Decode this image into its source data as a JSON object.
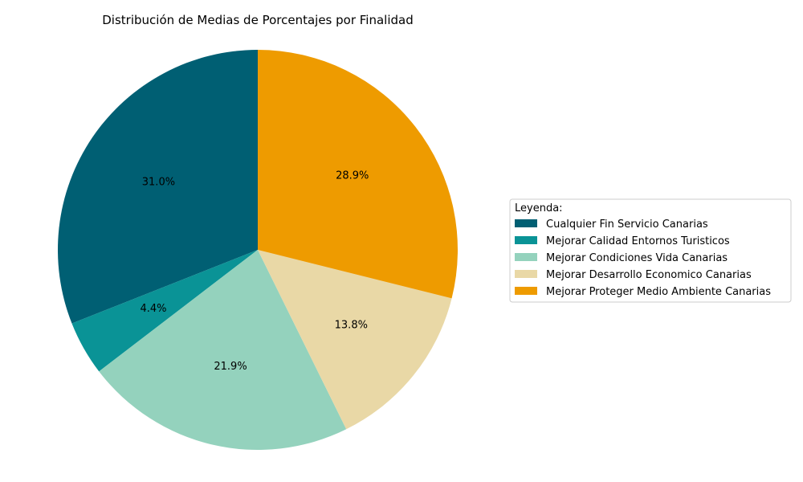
{
  "chart_data": {
    "type": "pie",
    "title": "Distribución de Medias de Porcentajes por Finalidad",
    "categories": [
      "Cualquier Fin Servicio Canarias",
      "Mejorar Calidad Entornos Turisticos",
      "Mejorar Condiciones Vida Canarias",
      "Mejorar Desarrollo Economico Canarias",
      "Mejorar Proteger Medio Ambiente Canarias"
    ],
    "values": [
      31.0,
      4.4,
      21.9,
      13.8,
      28.9
    ],
    "value_labels": [
      "31.0%",
      "4.4%",
      "21.9%",
      "13.8%",
      "28.9%"
    ],
    "colors": [
      "#005f73",
      "#0a9396",
      "#94d2bd",
      "#e9d8a6",
      "#ee9b00"
    ],
    "start_angle_deg": 90,
    "direction": "counterclockwise",
    "legend": {
      "title": "Leyenda:",
      "placement": "center-right"
    }
  }
}
